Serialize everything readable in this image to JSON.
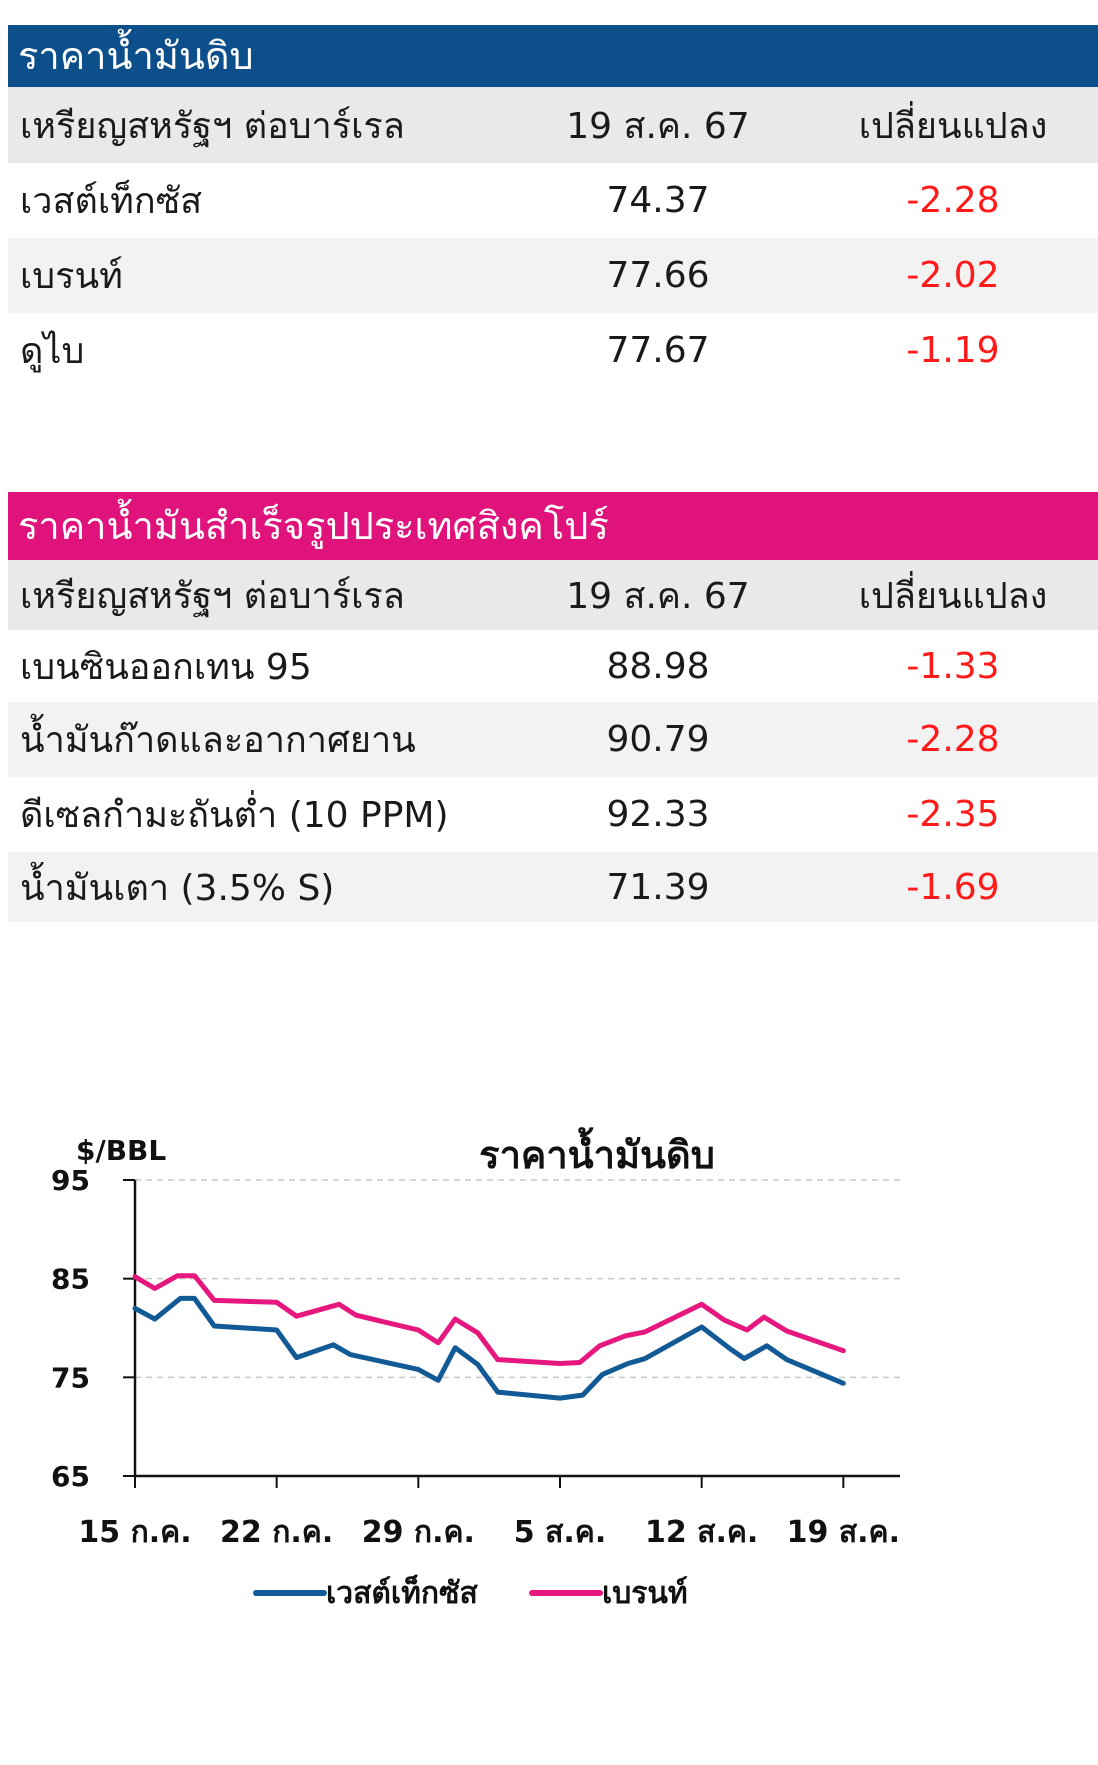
{
  "crude_table": {
    "title": "ราคาน้ำมันดิบ",
    "header_color": "#0d4f8b",
    "columns": [
      "เหรียญสหรัฐฯ ต่อบาร์เรล",
      "19 ส.ค. 67",
      "เปลี่ยนแปลง"
    ],
    "rows": [
      {
        "name": "เวสต์เท็กซัส",
        "price": "74.37",
        "change": "-2.28"
      },
      {
        "name": "เบรนท์",
        "price": "77.66",
        "change": "-2.02"
      },
      {
        "name": "ดูไบ",
        "price": "77.67",
        "change": "-1.19"
      }
    ]
  },
  "refined_table": {
    "title": "ราคาน้ำมันสำเร็จรูปประเทศสิงคโปร์",
    "header_color": "#e0127c",
    "columns": [
      "เหรียญสหรัฐฯ ต่อบาร์เรล",
      "19 ส.ค. 67",
      "เปลี่ยนแปลง"
    ],
    "rows": [
      {
        "name": "เบนซินออกเทน 95",
        "price": "88.98",
        "change": "-1.33"
      },
      {
        "name": "น้ำมันก๊าดและอากาศยาน",
        "price": "90.79",
        "change": "-2.28"
      },
      {
        "name": "ดีเซลกำมะถันต่ำ (10 PPM)",
        "price": "92.33",
        "change": "-2.35"
      },
      {
        "name": "น้ำมันเตา (3.5% S)",
        "price": "71.39",
        "change": "-1.69"
      }
    ]
  },
  "chart_data": {
    "type": "line",
    "title": "ราคาน้ำมันดิบ",
    "ylabel": "$/BBL",
    "ylim": [
      65,
      95
    ],
    "yticks": [
      95,
      85,
      75,
      65
    ],
    "xlim": [
      0,
      27
    ],
    "xticks": [
      {
        "x": 0,
        "label": "15 ก.ค."
      },
      {
        "x": 5,
        "label": "22 ก.ค."
      },
      {
        "x": 10,
        "label": "29 ก.ค."
      },
      {
        "x": 15,
        "label": "5 ส.ค."
      },
      {
        "x": 20,
        "label": "12 ส.ค."
      },
      {
        "x": 25,
        "label": "19 ส.ค."
      }
    ],
    "grid": "horizontal dashed",
    "legend_position": "bottom",
    "series": [
      {
        "name": "เวสต์เท็กซัส",
        "color": "#125a96",
        "points": [
          [
            0,
            82.0
          ],
          [
            0.7,
            80.9
          ],
          [
            1.6,
            83.0
          ],
          [
            2.1,
            83.0
          ],
          [
            2.8,
            80.2
          ],
          [
            5,
            79.8
          ],
          [
            5.7,
            77.0
          ],
          [
            7,
            78.3
          ],
          [
            7.6,
            77.3
          ],
          [
            10,
            75.8
          ],
          [
            10.7,
            74.7
          ],
          [
            11.3,
            78.0
          ],
          [
            12.1,
            76.3
          ],
          [
            12.8,
            73.5
          ],
          [
            15,
            72.9
          ],
          [
            15.8,
            73.2
          ],
          [
            16.5,
            75.3
          ],
          [
            17.4,
            76.4
          ],
          [
            18,
            76.9
          ],
          [
            20,
            80.1
          ],
          [
            21,
            77.9
          ],
          [
            21.5,
            76.9
          ],
          [
            22.3,
            78.2
          ],
          [
            23,
            76.8
          ],
          [
            25,
            74.4
          ]
        ]
      },
      {
        "name": "เบรนท์",
        "color": "#e6177f",
        "points": [
          [
            0,
            85.2
          ],
          [
            0.7,
            84.0
          ],
          [
            1.5,
            85.3
          ],
          [
            2.1,
            85.3
          ],
          [
            2.8,
            82.8
          ],
          [
            5,
            82.6
          ],
          [
            5.7,
            81.2
          ],
          [
            7.2,
            82.4
          ],
          [
            7.8,
            81.3
          ],
          [
            10,
            79.8
          ],
          [
            10.7,
            78.5
          ],
          [
            11.3,
            80.9
          ],
          [
            12.1,
            79.5
          ],
          [
            12.8,
            76.8
          ],
          [
            15,
            76.4
          ],
          [
            15.7,
            76.5
          ],
          [
            16.4,
            78.2
          ],
          [
            17.3,
            79.2
          ],
          [
            18,
            79.6
          ],
          [
            20,
            82.4
          ],
          [
            20.8,
            80.8
          ],
          [
            21.6,
            79.8
          ],
          [
            22.2,
            81.1
          ],
          [
            23,
            79.7
          ],
          [
            25,
            77.7
          ]
        ]
      }
    ]
  }
}
